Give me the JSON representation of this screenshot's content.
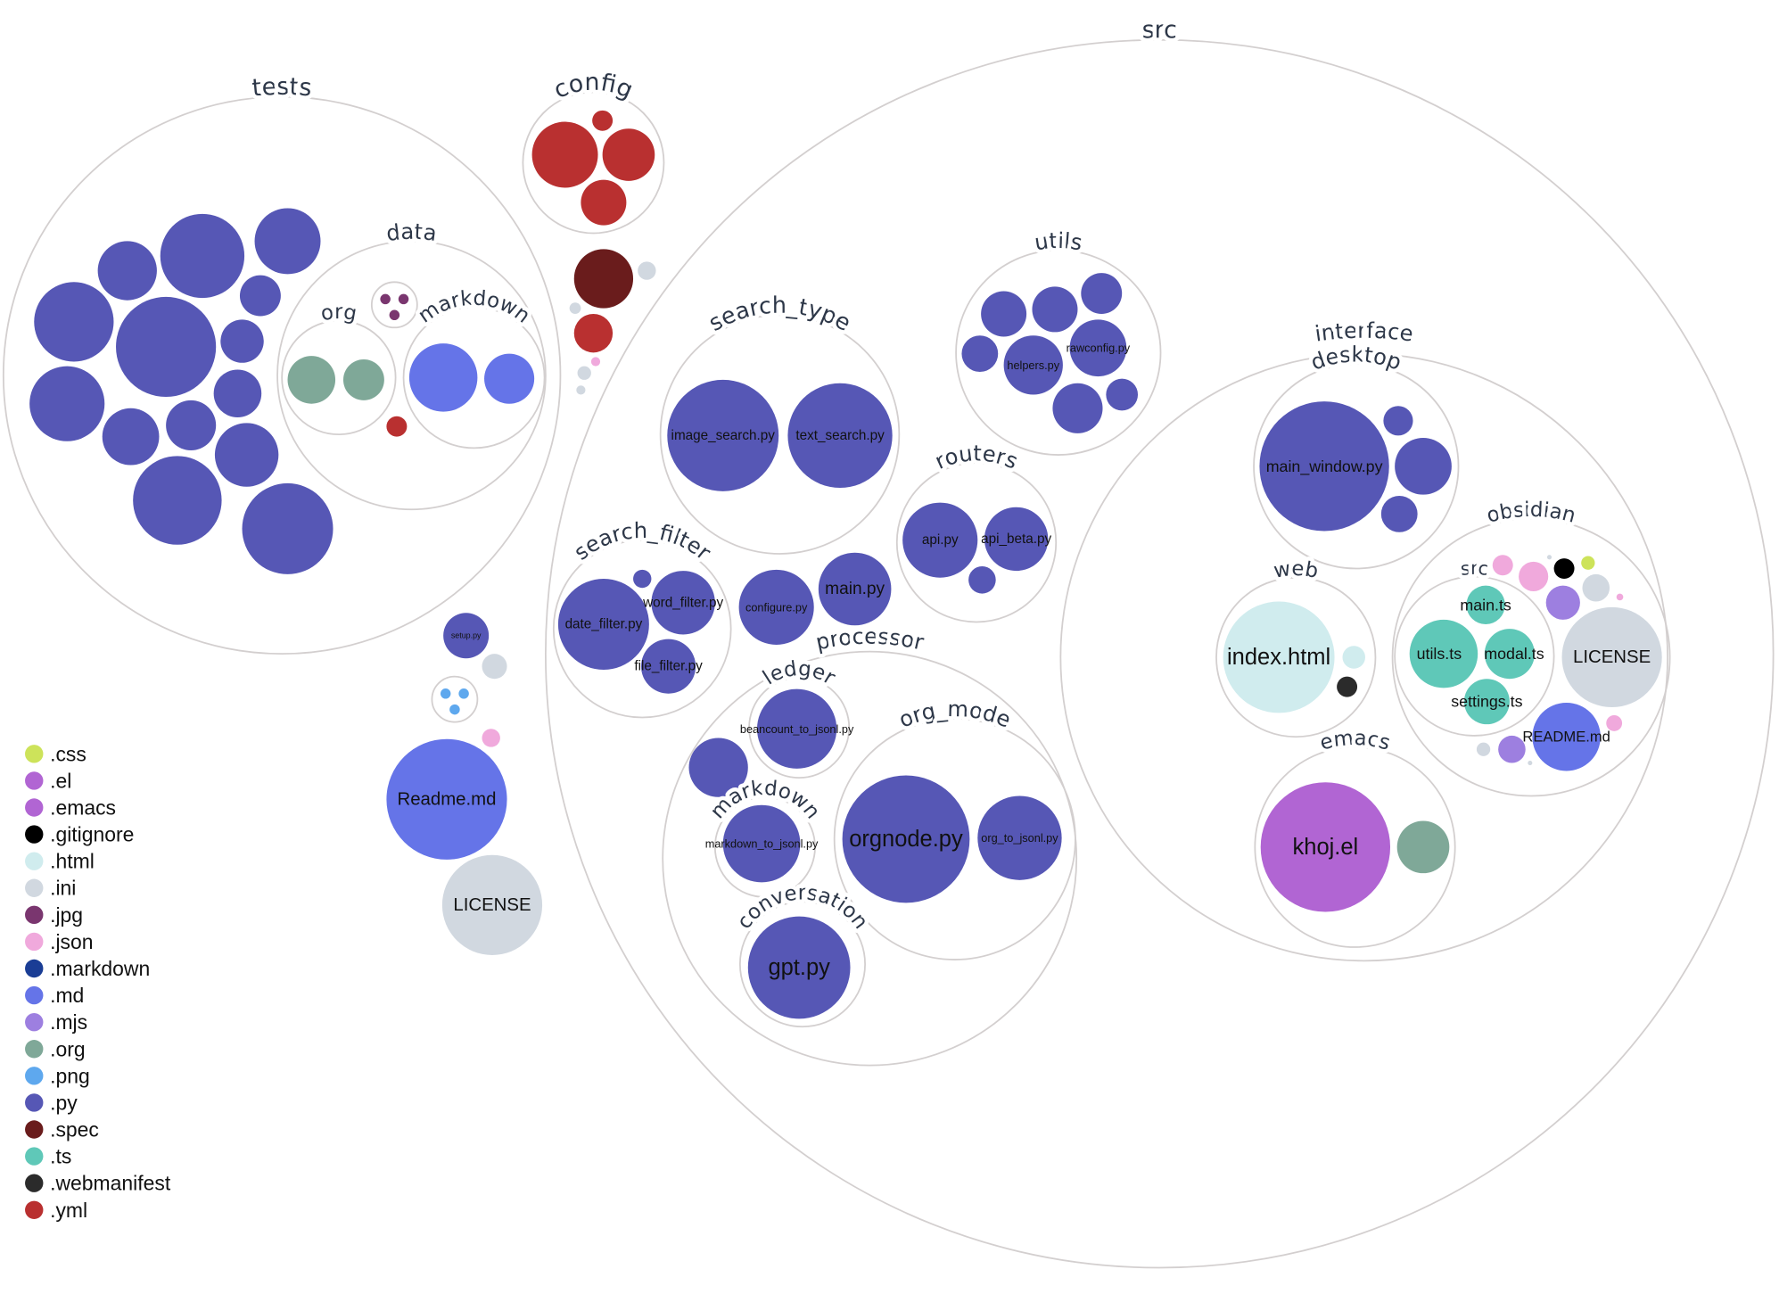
{
  "diagram": {
    "folders": [
      {
        "label": "src"
      },
      {
        "label": "tests"
      },
      {
        "label": "data"
      },
      {
        "label": "org"
      },
      {
        "label": "markdown"
      },
      {
        "label": ""
      },
      {
        "label": "config"
      },
      {
        "label": "search_type"
      },
      {
        "label": "utils"
      },
      {
        "label": "routers"
      },
      {
        "label": "search_filter"
      },
      {
        "label": "processor"
      },
      {
        "label": "ledger"
      },
      {
        "label": "markdown"
      },
      {
        "label": "org_mode"
      },
      {
        "label": "conversation"
      },
      {
        "label": "interface"
      },
      {
        "label": "desktop"
      },
      {
        "label": "web"
      },
      {
        "label": "obsidian"
      },
      {
        "label": "src"
      },
      {
        "label": "emacs"
      },
      {
        "label": ""
      }
    ],
    "files": [
      {
        "ext": ".py"
      },
      {
        "ext": ".py"
      },
      {
        "ext": ".py"
      },
      {
        "ext": ".py"
      },
      {
        "ext": ".py"
      },
      {
        "ext": ".py"
      },
      {
        "ext": ".py"
      },
      {
        "ext": ".py"
      },
      {
        "ext": ".py"
      },
      {
        "ext": ".py"
      },
      {
        "ext": ".py"
      },
      {
        "ext": ".py"
      },
      {
        "ext": ".py"
      },
      {
        "ext": ".py"
      },
      {
        "ext": ".org"
      },
      {
        "ext": ".org"
      },
      {
        "ext": ".md"
      },
      {
        "ext": ".md"
      },
      {
        "ext": ".jpg"
      },
      {
        "ext": ".jpg"
      },
      {
        "ext": ".jpg"
      },
      {
        "ext": ".yml"
      },
      {
        "ext": ".yml"
      },
      {
        "ext": ".yml"
      },
      {
        "ext": ".yml"
      },
      {
        "ext": ".yml"
      },
      {
        "ext": ".spec"
      },
      {
        "ext": ".ini"
      },
      {
        "ext": ".yml"
      },
      {
        "ext": ".ini"
      },
      {
        "ext": ".json"
      },
      {
        "ext": ".ini"
      },
      {
        "ext": ".ini"
      },
      {
        "ext": ".py",
        "label": "setup.py"
      },
      {
        "ext": ".ini"
      },
      {
        "ext": ".png"
      },
      {
        "ext": ".png"
      },
      {
        "ext": ".png"
      },
      {
        "ext": ".json"
      },
      {
        "ext": ".md",
        "label": "Readme.md"
      },
      {
        "ext": ".ini",
        "label": "LICENSE"
      },
      {
        "ext": ".py",
        "label": "image_search.py"
      },
      {
        "ext": ".py",
        "label": "text_search.py"
      },
      {
        "ext": ".py"
      },
      {
        "ext": ".py"
      },
      {
        "ext": ".py"
      },
      {
        "ext": ".py"
      },
      {
        "ext": ".py",
        "label": "helpers.py"
      },
      {
        "ext": ".py",
        "label": "rawconfig.py"
      },
      {
        "ext": ".py"
      },
      {
        "ext": ".py"
      },
      {
        "ext": ".py",
        "label": "api.py"
      },
      {
        "ext": ".py",
        "label": "api_beta.py"
      },
      {
        "ext": ".py"
      },
      {
        "ext": ".py",
        "label": "date_filter.py"
      },
      {
        "ext": ".py",
        "label": "word_filter.py"
      },
      {
        "ext": ".py",
        "label": "file_filter.py"
      },
      {
        "ext": ".py"
      },
      {
        "ext": ".py",
        "label": "configure.py"
      },
      {
        "ext": ".py",
        "label": "main.py"
      },
      {
        "ext": ".py"
      },
      {
        "ext": ".py",
        "label": "beancount_to_jsonl.py"
      },
      {
        "ext": ".py",
        "label": "markdown_to_jsonl.py"
      },
      {
        "ext": ".py",
        "label": "orgnode.py"
      },
      {
        "ext": ".py",
        "label": "org_to_jsonl.py"
      },
      {
        "ext": ".py",
        "label": "gpt.py"
      },
      {
        "ext": ".py",
        "label": "main_window.py"
      },
      {
        "ext": ".py"
      },
      {
        "ext": ".py"
      },
      {
        "ext": ".py"
      },
      {
        "ext": ".html",
        "label": "index.html"
      },
      {
        "ext": ".html"
      },
      {
        "ext": ".webmanifest"
      },
      {
        "ext": ".ts",
        "label": "main.ts"
      },
      {
        "ext": ".ts",
        "label": "utils.ts"
      },
      {
        "ext": ".ts",
        "label": "modal.ts"
      },
      {
        "ext": ".ts",
        "label": "settings.ts"
      },
      {
        "ext": ".png"
      },
      {
        "ext": ".json"
      },
      {
        "ext": ".json"
      },
      {
        "ext": ".ini"
      },
      {
        "ext": ".gitignore"
      },
      {
        "ext": ".css"
      },
      {
        "ext": ".mjs"
      },
      {
        "ext": ".ini"
      },
      {
        "ext": ".json"
      },
      {
        "ext": ".ini",
        "label": "LICENSE"
      },
      {
        "ext": ".md",
        "label": "README.md"
      },
      {
        "ext": ".json"
      },
      {
        "ext": ".ini"
      },
      {
        "ext": ".mjs"
      },
      {
        "ext": ".ini"
      },
      {
        "ext": ".el",
        "label": "khoj.el"
      },
      {
        "ext": ".org"
      }
    ]
  },
  "legend": [
    {
      "label": ".css",
      "color": "#cde35a"
    },
    {
      "label": ".el",
      "color": "#b165d3"
    },
    {
      "label": ".emacs",
      "color": "#b165d3"
    },
    {
      "label": ".gitignore",
      "color": "#000000"
    },
    {
      "label": ".html",
      "color": "#d0ecee"
    },
    {
      "label": ".ini",
      "color": "#d1d8e0"
    },
    {
      "label": ".jpg",
      "color": "#7a366f"
    },
    {
      "label": ".json",
      "color": "#f0a9dc"
    },
    {
      "label": ".markdown",
      "color": "#1a3d95"
    },
    {
      "label": ".md",
      "color": "#6574e8"
    },
    {
      "label": ".mjs",
      "color": "#9d7fe0"
    },
    {
      "label": ".org",
      "color": "#7fa898"
    },
    {
      "label": ".png",
      "color": "#5ea8ee"
    },
    {
      "label": ".py",
      "color": "#5657b5"
    },
    {
      "label": ".spec",
      "color": "#6a1c1c"
    },
    {
      "label": ".ts",
      "color": "#5fc8b8"
    },
    {
      "label": ".webmanifest",
      "color": "#2b2b2b"
    },
    {
      "label": ".yml",
      "color": "#b93030"
    }
  ]
}
